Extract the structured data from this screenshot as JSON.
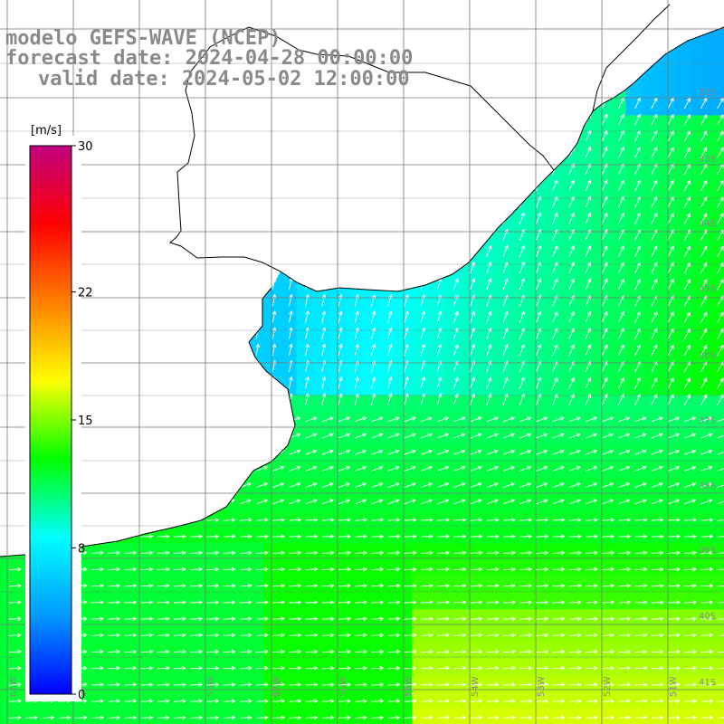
{
  "header": {
    "line1": "modelo GEFS-WAVE (NCEP)",
    "line2": "forecast date: 2024-04-28 00:00:00",
    "line3": "valid date: 2024-05-02 12:00:00"
  },
  "colorbar": {
    "unit": "[m/s]",
    "min": 0,
    "max": 30,
    "tick_labels": [
      "30",
      "22",
      "15",
      "8",
      "0"
    ],
    "tick_values": [
      30,
      22,
      15,
      8,
      0
    ],
    "colors": [
      "#0000ff",
      "#0099ff",
      "#00ffff",
      "#00ff00",
      "#ffff00",
      "#ff8000",
      "#ff0000",
      "#c00080"
    ]
  },
  "grid": {
    "lon_labels": [
      "61W",
      "60W",
      "58W",
      "57W",
      "56W",
      "55W",
      "54W",
      "53W",
      "52W",
      "51W"
    ],
    "lat_labels": [
      "32S",
      "33S",
      "34S",
      "35S",
      "36S",
      "37S",
      "38S",
      "39S",
      "40S",
      "41S"
    ]
  },
  "map": {
    "variable": "wind speed",
    "colors": {
      "land": "#ffffff",
      "coast": "#000000",
      "gridline": "#777777",
      "arrow": "#ffffff"
    }
  }
}
